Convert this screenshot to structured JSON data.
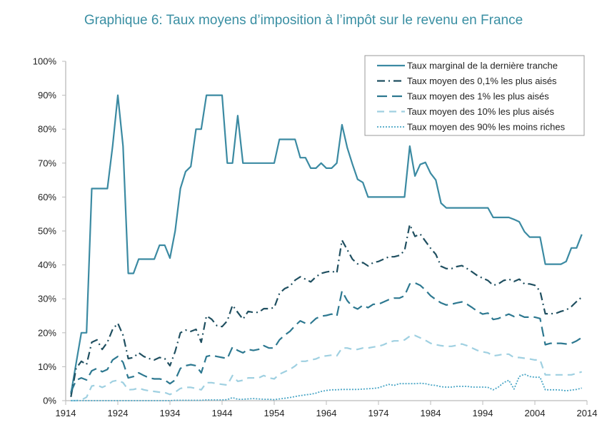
{
  "chart_data": {
    "type": "line",
    "title": "Graphique 6: Taux moyens d’imposition à l’impôt sur le revenu en France",
    "xlabel": "",
    "ylabel": "",
    "xlim": [
      1914,
      2014
    ],
    "ylim": [
      0,
      100
    ],
    "x_ticks": [
      "1914",
      "1924",
      "1934",
      "1944",
      "1954",
      "1964",
      "1974",
      "1984",
      "1994",
      "2004",
      "2014"
    ],
    "y_ticks": [
      "0%",
      "10%",
      "20%",
      "30%",
      "40%",
      "50%",
      "60%",
      "70%",
      "80%",
      "90%",
      "100%"
    ],
    "grid": false,
    "legend_position": "top-right",
    "x": [
      1915,
      1916,
      1917,
      1918,
      1919,
      1920,
      1921,
      1922,
      1923,
      1924,
      1925,
      1926,
      1927,
      1928,
      1929,
      1930,
      1931,
      1932,
      1933,
      1934,
      1935,
      1936,
      1937,
      1938,
      1939,
      1940,
      1941,
      1942,
      1943,
      1944,
      1945,
      1946,
      1947,
      1948,
      1949,
      1950,
      1951,
      1952,
      1953,
      1954,
      1955,
      1956,
      1957,
      1958,
      1959,
      1960,
      1961,
      1962,
      1963,
      1964,
      1965,
      1966,
      1967,
      1968,
      1969,
      1970,
      1971,
      1972,
      1973,
      1974,
      1975,
      1976,
      1977,
      1978,
      1979,
      1980,
      1981,
      1982,
      1983,
      1984,
      1985,
      1986,
      1987,
      1988,
      1989,
      1990,
      1991,
      1992,
      1993,
      1994,
      1995,
      1996,
      1997,
      1998,
      1999,
      2000,
      2001,
      2002,
      2003,
      2004,
      2005,
      2006,
      2007,
      2008,
      2009,
      2010,
      2011,
      2012,
      2013
    ],
    "series": [
      {
        "name": "Taux marginal de la dernière tranche",
        "color": "#3b8aa2",
        "style": "solid",
        "values": [
          2,
          11,
          20,
          20,
          62.5,
          62.5,
          62.5,
          62.5,
          75,
          90,
          75,
          37.5,
          37.5,
          41.7,
          41.7,
          41.7,
          41.7,
          45.8,
          45.8,
          42,
          50,
          62.5,
          67.5,
          69,
          80,
          80,
          90,
          90,
          90,
          90,
          70,
          70,
          84,
          70,
          70,
          70,
          70,
          70,
          70,
          70,
          77,
          77,
          77,
          77,
          71.6,
          71.6,
          68.5,
          68.5,
          70,
          68.5,
          68.5,
          70,
          81.3,
          74.6,
          69.7,
          65.2,
          64.3,
          60,
          60,
          60,
          60,
          60,
          60,
          60,
          60,
          75,
          66.2,
          69.6,
          70.2,
          67,
          65,
          58.2,
          56.8,
          56.8,
          56.8,
          56.8,
          56.8,
          56.8,
          56.8,
          56.8,
          56.8,
          54,
          54,
          54,
          54,
          53.4,
          52.7,
          49.8,
          48.2,
          48.2,
          48.2,
          40.2,
          40.2,
          40.2,
          40.2,
          41,
          45,
          45,
          49
        ]
      },
      {
        "name": "Taux moyen des 0,1% les plus aisés",
        "color": "#1f4f60",
        "style": "dash-dot",
        "values": [
          1.1,
          9.5,
          11.6,
          10.6,
          17.2,
          17.9,
          15.1,
          17.2,
          21,
          22.8,
          19.3,
          12.4,
          12.7,
          14.1,
          13,
          12.4,
          12,
          12.7,
          12.4,
          10.3,
          14.5,
          20,
          20.8,
          20.4,
          21,
          17.2,
          25,
          24,
          22.1,
          21.8,
          23.5,
          28.1,
          26,
          24,
          26.3,
          26,
          26,
          27.1,
          27.1,
          27.4,
          31.6,
          33,
          33.7,
          35.5,
          36.5,
          35.8,
          35,
          36.5,
          37.5,
          37.9,
          38.2,
          37.6,
          47.3,
          44.5,
          41.7,
          40.3,
          40.7,
          39.7,
          40.7,
          41,
          41.7,
          42.4,
          42.4,
          42.8,
          44.2,
          51.9,
          48.4,
          49.1,
          47,
          44.9,
          43.1,
          39.6,
          38.9,
          38.9,
          39.5,
          39.8,
          38.9,
          37.9,
          36.8,
          36.1,
          35.4,
          34,
          34.4,
          35.4,
          35.8,
          35.1,
          35.8,
          34.4,
          34.4,
          34,
          32.3,
          25.6,
          25.6,
          25.7,
          26.3,
          26.7,
          27.7,
          29.2,
          30.5
        ]
      },
      {
        "name": "Taux moyen des 1% les plus aisés",
        "color": "#2d7890",
        "style": "dash",
        "values": [
          2.5,
          6,
          6.7,
          6.1,
          8.8,
          9.5,
          8.5,
          9.2,
          12,
          13,
          11.3,
          6.7,
          7.1,
          8.2,
          7.4,
          6.7,
          6.4,
          6.4,
          6.1,
          5,
          6.1,
          9.5,
          10.3,
          10.6,
          10.3,
          8.2,
          13,
          13.4,
          13,
          12.7,
          12.4,
          15.8,
          14.8,
          14.1,
          15.1,
          14.8,
          15.1,
          16.2,
          15.5,
          15.5,
          17.9,
          19.3,
          20.4,
          22.1,
          23.5,
          22.8,
          22.8,
          24.2,
          24.9,
          25.1,
          25.5,
          24.9,
          32.3,
          29.5,
          27.7,
          27,
          28.1,
          27.4,
          28.4,
          28.4,
          29.1,
          29.8,
          30.2,
          30.2,
          30.9,
          34.4,
          34.7,
          34,
          32.6,
          30.9,
          29.8,
          28.8,
          28.2,
          28.4,
          28.8,
          29.1,
          28.4,
          27.4,
          26.3,
          25.5,
          25.8,
          23.9,
          24.2,
          24.9,
          25.5,
          24.8,
          25.3,
          24.6,
          24.6,
          24.6,
          24.2,
          16.5,
          16.9,
          16.9,
          16.9,
          16.7,
          16.9,
          17.6,
          18.6
        ]
      },
      {
        "name": "Taux moyen des 10% les plus aisés",
        "color": "#9fd0e1",
        "style": "light-dash",
        "values": [
          0,
          0,
          0.2,
          1,
          4.3,
          4.6,
          3.9,
          4.6,
          5.7,
          6,
          5.3,
          3.2,
          3.3,
          3.7,
          3.2,
          2.9,
          2.7,
          2.5,
          2.4,
          1.8,
          2.5,
          3.6,
          3.9,
          3.9,
          3.6,
          3.2,
          5.3,
          5.3,
          5,
          4.8,
          4.6,
          7.4,
          5.7,
          6,
          6.7,
          6.7,
          6.7,
          7.4,
          6.7,
          6.4,
          7.8,
          8.5,
          9.2,
          10.2,
          11.6,
          11.6,
          12,
          12.3,
          13,
          13.2,
          13.4,
          13.2,
          15.5,
          15.5,
          15.1,
          15.1,
          15.5,
          15.5,
          15.8,
          16,
          16.5,
          17.2,
          17.6,
          17.6,
          17.9,
          19,
          19.2,
          18.5,
          17.8,
          16.9,
          16.5,
          16.2,
          16,
          16,
          16.3,
          16.7,
          16.2,
          15.5,
          14.8,
          14.4,
          14.1,
          13.2,
          13.4,
          13.7,
          13.7,
          12.7,
          12.7,
          12.5,
          12.3,
          12,
          12,
          7.6,
          7.6,
          7.6,
          7.6,
          7.6,
          7.6,
          8,
          8.5
        ]
      },
      {
        "name": "Taux moyen des 90% les moins riches",
        "color": "#4aa6c6",
        "style": "dotted",
        "values": [
          0,
          0,
          0,
          0,
          0,
          0,
          0,
          0,
          0,
          0,
          0,
          0,
          0,
          0,
          0,
          0,
          0,
          0,
          0,
          0,
          0.1,
          0.1,
          0.1,
          0.1,
          0.1,
          0.1,
          0.2,
          0.2,
          0.2,
          0.2,
          0.3,
          0.9,
          0.4,
          0.4,
          0.5,
          0.6,
          0.5,
          0.4,
          0.4,
          0.3,
          0.5,
          0.7,
          0.9,
          1.2,
          1.5,
          1.7,
          1.9,
          2.2,
          2.7,
          3,
          3.2,
          3.2,
          3.3,
          3.3,
          3.3,
          3.3,
          3.4,
          3.5,
          3.6,
          3.8,
          4.3,
          4.8,
          4.5,
          5,
          5,
          5,
          5,
          5.1,
          5,
          4.6,
          4.5,
          4.1,
          4,
          4,
          4.2,
          4.2,
          4.2,
          4,
          4,
          4,
          3.9,
          3.2,
          4,
          5.3,
          6,
          3.4,
          7.1,
          7.8,
          7.1,
          6.9,
          6.9,
          3.2,
          3.2,
          3.2,
          3.1,
          2.9,
          3.1,
          3.3,
          3.7
        ]
      }
    ]
  }
}
